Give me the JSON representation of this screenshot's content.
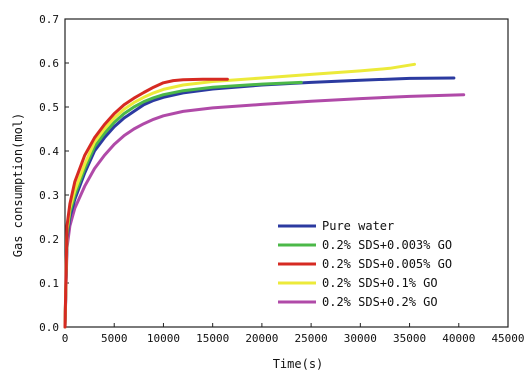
{
  "chart_data": {
    "type": "line",
    "title": "",
    "xlabel": "Time(s)",
    "ylabel": "Gas consumption(mol)",
    "xlim": [
      0,
      45000
    ],
    "ylim": [
      0,
      0.7
    ],
    "xticks": [
      0,
      5000,
      10000,
      15000,
      20000,
      25000,
      30000,
      35000,
      40000,
      45000
    ],
    "xtick_labels": [
      "0",
      "5000",
      "10000",
      "15000",
      "20000",
      "25000",
      "30000",
      "35000",
      "40000",
      "45000"
    ],
    "yticks": [
      0,
      0.1,
      0.2,
      0.3,
      0.4,
      0.5,
      0.6,
      0.7
    ],
    "ytick_labels": [
      "0.0",
      "0.1",
      "0.2",
      "0.3",
      "0.4",
      "0.5",
      "0.6",
      "0.7"
    ],
    "grid": false,
    "legend_position": "bottom-right",
    "series": [
      {
        "name": "Pure water",
        "color": "#2b3aa0",
        "x": [
          0,
          200,
          500,
          1000,
          2000,
          3000,
          4000,
          5000,
          6000,
          7000,
          8000,
          9000,
          10000,
          12000,
          15000,
          20000,
          25000,
          30000,
          35000,
          39500
        ],
        "y": [
          0.0,
          0.2,
          0.25,
          0.29,
          0.35,
          0.4,
          0.43,
          0.455,
          0.475,
          0.49,
          0.505,
          0.515,
          0.522,
          0.532,
          0.541,
          0.55,
          0.556,
          0.561,
          0.565,
          0.566
        ]
      },
      {
        "name": "0.2% SDS+0.003% GO",
        "color": "#4bb848",
        "x": [
          0,
          200,
          500,
          1000,
          2000,
          3000,
          4000,
          5000,
          6000,
          7000,
          8000,
          9000,
          10000,
          12000,
          15000,
          20000,
          24000
        ],
        "y": [
          0.0,
          0.21,
          0.26,
          0.3,
          0.36,
          0.41,
          0.44,
          0.465,
          0.485,
          0.5,
          0.512,
          0.521,
          0.528,
          0.537,
          0.545,
          0.552,
          0.556
        ]
      },
      {
        "name": "0.2% SDS+0.005% GO",
        "color": "#d62a22",
        "x": [
          0,
          200,
          500,
          1000,
          2000,
          3000,
          4000,
          5000,
          6000,
          7000,
          8000,
          9000,
          10000,
          11000,
          12000,
          14000,
          16500
        ],
        "y": [
          0.0,
          0.23,
          0.28,
          0.33,
          0.39,
          0.43,
          0.46,
          0.485,
          0.505,
          0.52,
          0.533,
          0.545,
          0.555,
          0.56,
          0.562,
          0.563,
          0.563
        ]
      },
      {
        "name": "0.2% SDS+0.1% GO",
        "color": "#ecea3a",
        "x": [
          0,
          200,
          500,
          1000,
          2000,
          3000,
          4000,
          5000,
          6000,
          7000,
          8000,
          9000,
          10000,
          12000,
          15000,
          20000,
          25000,
          30000,
          33000,
          35500
        ],
        "y": [
          0.0,
          0.22,
          0.27,
          0.31,
          0.37,
          0.42,
          0.45,
          0.475,
          0.495,
          0.51,
          0.522,
          0.532,
          0.54,
          0.55,
          0.558,
          0.566,
          0.574,
          0.582,
          0.588,
          0.597
        ]
      },
      {
        "name": "0.2% SDS+0.2% GO",
        "color": "#b04aa8",
        "x": [
          0,
          200,
          500,
          1000,
          2000,
          3000,
          4000,
          5000,
          6000,
          7000,
          8000,
          9000,
          10000,
          12000,
          15000,
          20000,
          25000,
          30000,
          35000,
          40500
        ],
        "y": [
          0.0,
          0.18,
          0.23,
          0.27,
          0.32,
          0.36,
          0.39,
          0.415,
          0.435,
          0.45,
          0.462,
          0.472,
          0.48,
          0.49,
          0.498,
          0.506,
          0.513,
          0.519,
          0.524,
          0.528
        ]
      }
    ]
  }
}
